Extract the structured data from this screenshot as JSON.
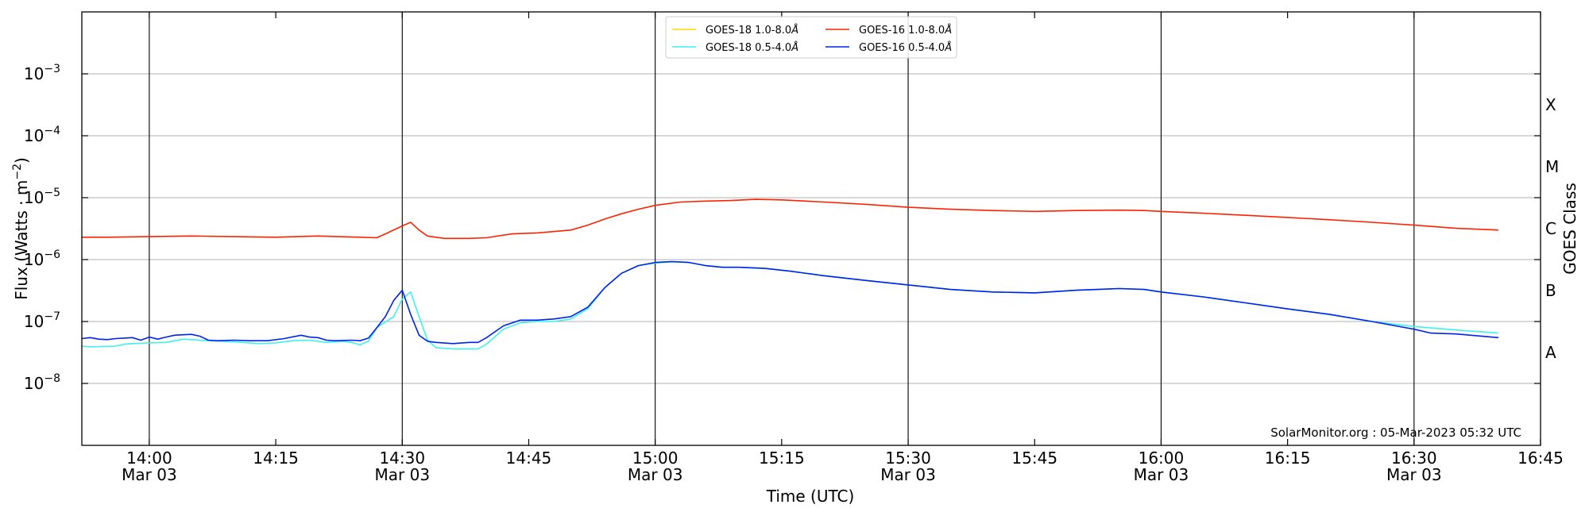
{
  "chart_data": {
    "type": "line",
    "ylabel_parts": [
      "Flux (Watts · m",
      "−2",
      ")"
    ],
    "xlabel": "Time (UTC)",
    "right_label": "GOES Class",
    "watermark": "SolarMonitor.org : 05-Mar-2023 05:32 UTC",
    "y_scale": "log",
    "ylim": [
      "1e-9",
      "1e-2"
    ],
    "xlim": [
      "13:52",
      "16:45"
    ],
    "y_ticks": [
      {
        "value": "1e-8",
        "base": "10",
        "exp": "−8"
      },
      {
        "value": "1e-7",
        "base": "10",
        "exp": "−7"
      },
      {
        "value": "1e-6",
        "base": "10",
        "exp": "−6"
      },
      {
        "value": "1e-5",
        "base": "10",
        "exp": "−5"
      },
      {
        "value": "1e-4",
        "base": "10",
        "exp": "−4"
      },
      {
        "value": "1e-3",
        "base": "10",
        "exp": "−3"
      }
    ],
    "x_ticks": [
      {
        "time": "14:00",
        "label": "14:00",
        "date": "Mar 03"
      },
      {
        "time": "14:15",
        "label": "14:15",
        "date": ""
      },
      {
        "time": "14:30",
        "label": "14:30",
        "date": "Mar 03"
      },
      {
        "time": "14:45",
        "label": "14:45",
        "date": ""
      },
      {
        "time": "15:00",
        "label": "15:00",
        "date": "Mar 03"
      },
      {
        "time": "15:15",
        "label": "15:15",
        "date": ""
      },
      {
        "time": "15:30",
        "label": "15:30",
        "date": "Mar 03"
      },
      {
        "time": "15:45",
        "label": "15:45",
        "date": ""
      },
      {
        "time": "16:00",
        "label": "16:00",
        "date": "Mar 03"
      },
      {
        "time": "16:15",
        "label": "16:15",
        "date": ""
      },
      {
        "time": "16:30",
        "label": "16:30",
        "date": "Mar 03"
      },
      {
        "time": "16:45",
        "label": "16:45",
        "date": ""
      }
    ],
    "classes": [
      {
        "label": "A",
        "lower": "1e-8"
      },
      {
        "label": "B",
        "lower": "1e-7"
      },
      {
        "label": "C",
        "lower": "1e-6"
      },
      {
        "label": "M",
        "lower": "1e-5"
      },
      {
        "label": "X",
        "lower": "1e-4"
      }
    ],
    "grid": "horizontal at decades; vertical lines at 30-minute marks",
    "legend_position": "top-center",
    "series": [
      {
        "name": "GOES-18 1.0-8.0Å",
        "name_main": "GOES-18 1.0-8.0",
        "color": "#ffd700",
        "x": [],
        "y": []
      },
      {
        "name": "GOES-18 0.5-4.0Å",
        "name_main": "GOES-18 0.5-4.0",
        "color": "#3ff0f0",
        "x": [
          "13:52",
          "13:53",
          "13:56",
          "13:57",
          "13:58",
          "14:00",
          "14:02",
          "14:04",
          "14:05",
          "14:07",
          "14:10",
          "14:13",
          "14:15",
          "14:17",
          "14:19",
          "14:21",
          "14:23",
          "14:24",
          "14:25",
          "14:26",
          "14:27",
          "14:29",
          "14:30",
          "14:31",
          "14:32",
          "14:33",
          "14:34",
          "14:36",
          "14:38",
          "14:39",
          "14:40",
          "14:42",
          "14:44",
          "14:46",
          "14:48",
          "14:50",
          "14:52",
          "14:54",
          "14:56",
          "14:58",
          "15:00",
          "15:02",
          "15:04",
          "15:06",
          "15:08",
          "15:10",
          "15:13",
          "15:16",
          "15:20",
          "15:25",
          "15:30",
          "15:35",
          "15:40",
          "15:45",
          "15:50",
          "15:55",
          "15:58",
          "16:00",
          "16:05",
          "16:10",
          "16:15",
          "16:20",
          "16:25",
          "16:30",
          "16:35",
          "16:40"
        ],
        "y": [
          "4.0e-8",
          "3.9e-8",
          "4.0e-8",
          "4.3e-8",
          "4.4e-8",
          "4.5e-8",
          "4.6e-8",
          "5.2e-8",
          "5.1e-8",
          "4.9e-8",
          "4.7e-8",
          "4.4e-8",
          "4.5e-8",
          "4.9e-8",
          "5.0e-8",
          "4.6e-8",
          "4.8e-8",
          "4.6e-8",
          "4.2e-8",
          "4.8e-8",
          "8.0e-8",
          "1.2e-7",
          "2.3e-7",
          "3.0e-7",
          "1.2e-7",
          "5.0e-8",
          "3.8e-8",
          "3.6e-8",
          "3.6e-8",
          "3.6e-8",
          "4.3e-8",
          "7.5e-8",
          "9.5e-8",
          "1.0e-7",
          "1.0e-7",
          "1.1e-7",
          "1.6e-7",
          "3.5e-7",
          "6.0e-7",
          "8.0e-7",
          "8.8e-7",
          "9.2e-7",
          "9.0e-7",
          "8.0e-7",
          "7.5e-7",
          "7.5e-7",
          "7.2e-7",
          "6.5e-7",
          "5.5e-7",
          "4.6e-7",
          "3.9e-7",
          "3.3e-7",
          "3.0e-7",
          "2.9e-7",
          "3.2e-7",
          "3.4e-7",
          "3.3e-7",
          "3.0e-7",
          "2.5e-7",
          "2.0e-7",
          "1.6e-7",
          "1.3e-7",
          "1.0e-7",
          "8.3e-8",
          "7.3e-8",
          "6.5e-8"
        ]
      },
      {
        "name": "GOES-16 1.0-8.0Å",
        "name_main": "GOES-16 1.0-8.0",
        "color": "#ff2200",
        "x": [
          "13:52",
          "13:55",
          "14:00",
          "14:05",
          "14:10",
          "14:15",
          "14:20",
          "14:25",
          "14:27",
          "14:28",
          "14:30",
          "14:31",
          "14:32",
          "14:33",
          "14:35",
          "14:38",
          "14:40",
          "14:43",
          "14:46",
          "14:50",
          "14:52",
          "14:54",
          "14:56",
          "14:58",
          "15:00",
          "15:03",
          "15:06",
          "15:09",
          "15:12",
          "15:15",
          "15:20",
          "15:25",
          "15:30",
          "15:35",
          "15:40",
          "15:45",
          "15:50",
          "15:55",
          "15:58",
          "16:00",
          "16:05",
          "16:10",
          "16:15",
          "16:20",
          "16:25",
          "16:30",
          "16:35",
          "16:40"
        ],
        "y": [
          "2.3e-6",
          "2.3e-6",
          "2.35e-6",
          "2.4e-6",
          "2.35e-6",
          "2.3e-6",
          "2.4e-6",
          "2.3e-6",
          "2.25e-6",
          "2.6e-6",
          "3.5e-6",
          "4.0e-6",
          "3.0e-6",
          "2.4e-6",
          "2.2e-6",
          "2.2e-6",
          "2.25e-6",
          "2.6e-6",
          "2.7e-6",
          "3.0e-6",
          "3.6e-6",
          "4.5e-6",
          "5.5e-6",
          "6.5e-6",
          "7.5e-6",
          "8.5e-6",
          "8.8e-6",
          "9.0e-6",
          "9.4e-6",
          "9.2e-6",
          "8.5e-6",
          "7.8e-6",
          "7.0e-6",
          "6.5e-6",
          "6.2e-6",
          "6.0e-6",
          "6.2e-6",
          "6.3e-6",
          "6.2e-6",
          "6.0e-6",
          "5.6e-6",
          "5.2e-6",
          "4.8e-6",
          "4.4e-6",
          "4.0e-6",
          "3.6e-6",
          "3.2e-6",
          "3.0e-6"
        ]
      },
      {
        "name": "GOES-16 0.5-4.0Å",
        "name_main": "GOES-16 0.5-4.0",
        "color": "#0022ee",
        "x": [
          "13:52",
          "13:53",
          "13:54",
          "13:55",
          "13:56",
          "13:57",
          "13:58",
          "13:59",
          "14:00",
          "14:01",
          "14:02",
          "14:03",
          "14:04",
          "14:05",
          "14:06",
          "14:07",
          "14:08",
          "14:10",
          "14:12",
          "14:14",
          "14:16",
          "14:18",
          "14:19",
          "14:20",
          "14:21",
          "14:22",
          "14:24",
          "14:25",
          "14:26",
          "14:27",
          "14:28",
          "14:29",
          "14:30",
          "14:31",
          "14:32",
          "14:33",
          "14:34",
          "14:36",
          "14:38",
          "14:39",
          "14:40",
          "14:42",
          "14:44",
          "14:46",
          "14:48",
          "14:50",
          "14:52",
          "14:54",
          "14:56",
          "14:58",
          "15:00",
          "15:02",
          "15:04",
          "15:06",
          "15:08",
          "15:10",
          "15:13",
          "15:16",
          "15:20",
          "15:25",
          "15:30",
          "15:35",
          "15:40",
          "15:45",
          "15:50",
          "15:55",
          "15:58",
          "16:00",
          "16:05",
          "16:10",
          "16:15",
          "16:20",
          "16:25",
          "16:30",
          "16:32",
          "16:35",
          "16:40"
        ],
        "y": [
          "5.3e-8",
          "5.5e-8",
          "5.2e-8",
          "5.1e-8",
          "5.3e-8",
          "5.4e-8",
          "5.5e-8",
          "5.0e-8",
          "5.6e-8",
          "5.2e-8",
          "5.6e-8",
          "6.0e-8",
          "6.1e-8",
          "6.2e-8",
          "5.8e-8",
          "5.0e-8",
          "4.9e-8",
          "5.0e-8",
          "4.9e-8",
          "4.9e-8",
          "5.3e-8",
          "6.0e-8",
          "5.6e-8",
          "5.5e-8",
          "5.0e-8",
          "4.9e-8",
          "5.0e-8",
          "4.9e-8",
          "5.4e-8",
          "8.0e-8",
          "1.2e-7",
          "2.2e-7",
          "3.2e-7",
          "1.3e-7",
          "6.0e-8",
          "4.8e-8",
          "4.6e-8",
          "4.4e-8",
          "4.6e-8",
          "4.6e-8",
          "5.5e-8",
          "8.5e-8",
          "1.05e-7",
          "1.05e-7",
          "1.1e-7",
          "1.2e-7",
          "1.7e-7",
          "3.5e-7",
          "6.0e-7",
          "8.0e-7",
          "9.0e-7",
          "9.3e-7",
          "9.0e-7",
          "8.0e-7",
          "7.5e-7",
          "7.5e-7",
          "7.2e-7",
          "6.5e-7",
          "5.5e-7",
          "4.6e-7",
          "3.9e-7",
          "3.3e-7",
          "3.0e-7",
          "2.9e-7",
          "3.2e-7",
          "3.4e-7",
          "3.3e-7",
          "3.0e-7",
          "2.5e-7",
          "2.0e-7",
          "1.6e-7",
          "1.3e-7",
          "1.0e-7",
          "7.5e-8",
          "6.5e-8",
          "6.3e-8",
          "5.5e-8"
        ]
      }
    ]
  }
}
